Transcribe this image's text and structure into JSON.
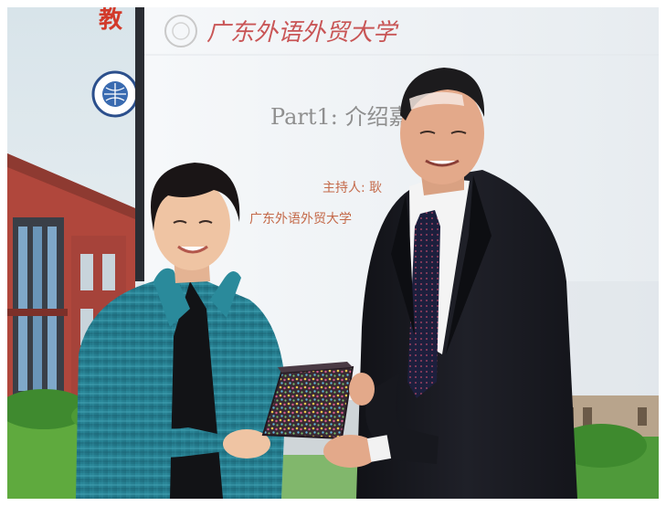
{
  "photo": {
    "slide": {
      "header_logo_text": "广东外语外贸大学",
      "title": "Part1: 介绍嘉宾",
      "host_line": "主持人: 耿",
      "org_line": "广东外语外贸大学"
    },
    "banner": {
      "top_char": "教"
    },
    "colors": {
      "slide_bg": "#eef2f5",
      "slide_header_red": "#c23a3a",
      "title_gray": "#8f8f8f",
      "banner_brick": "#b0473c",
      "grass_green": "#6fbf4a",
      "jacket_teal": "#2d8ea0",
      "suit_black": "#1a1b22",
      "gift_box": "#3a2a34"
    }
  }
}
